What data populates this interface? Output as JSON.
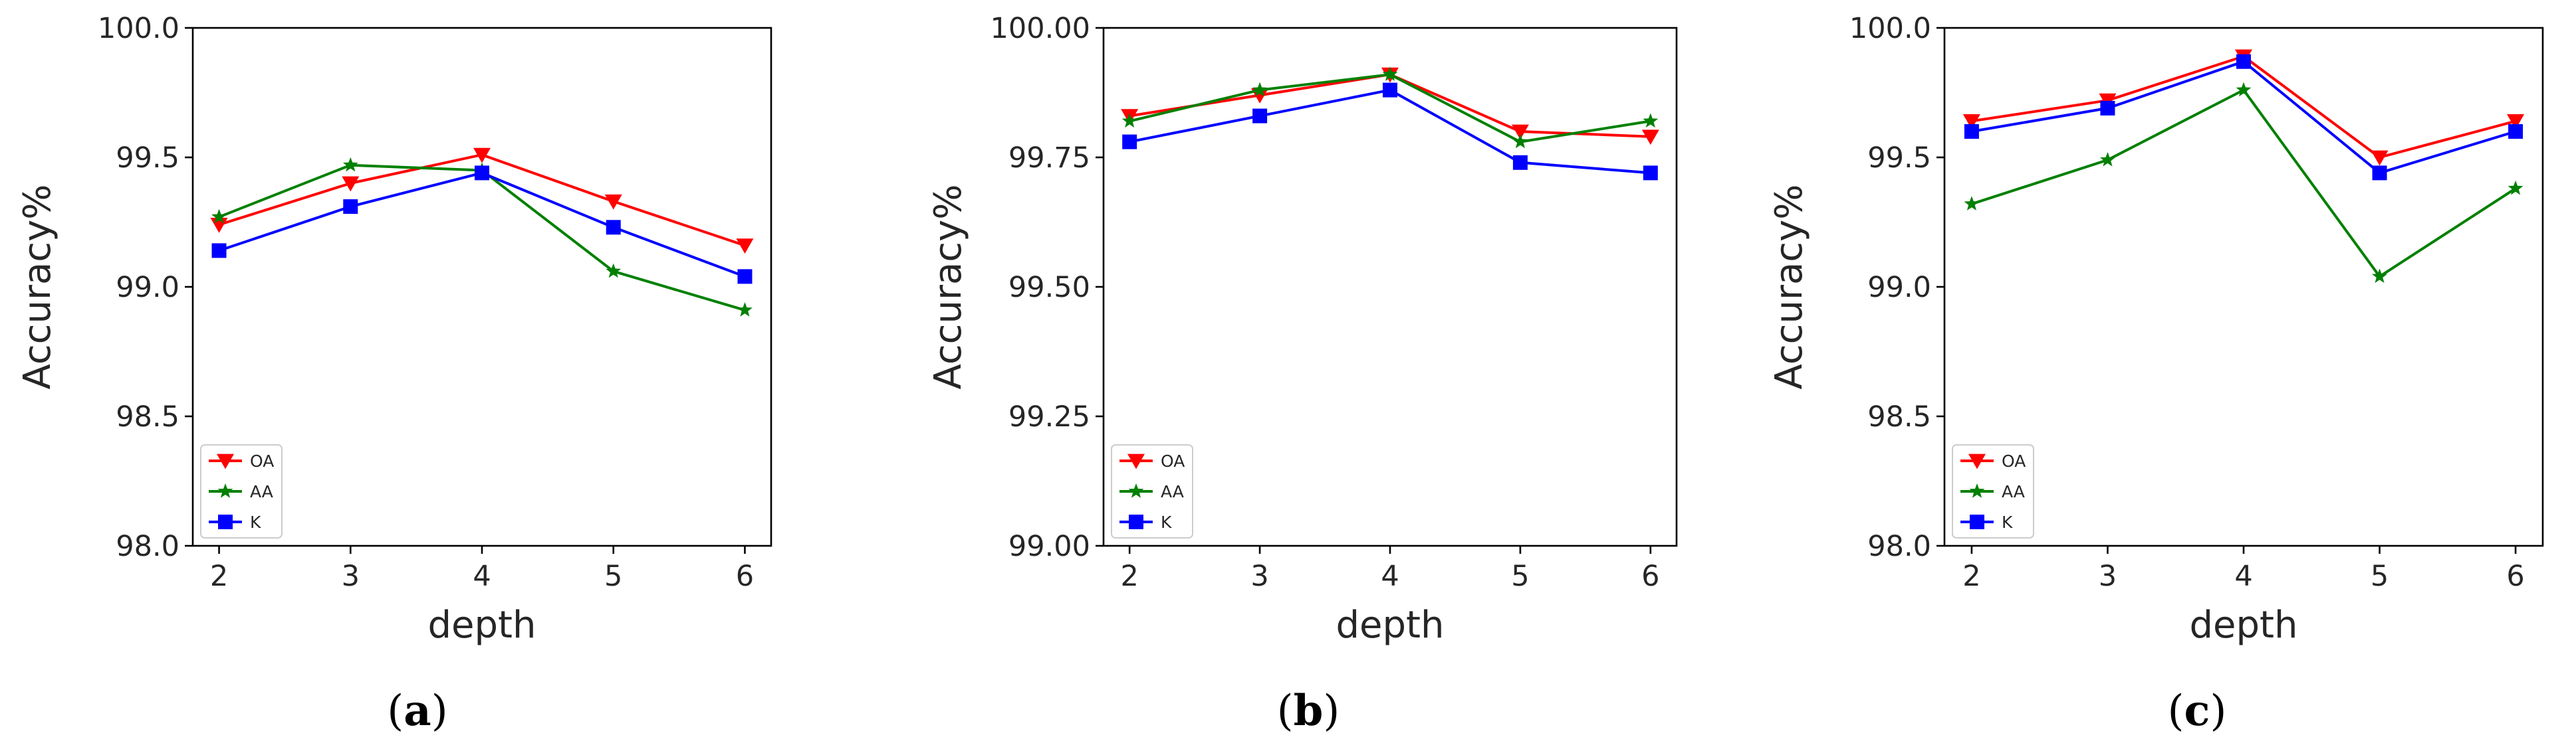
{
  "chart_data": [
    {
      "type": "line",
      "panel": "a",
      "caption": "(a)",
      "caption_letter": "a",
      "xlabel": "depth",
      "ylabel": "Accuracy%",
      "x": [
        2,
        3,
        4,
        5,
        6
      ],
      "xlim": [
        1.8,
        6.2
      ],
      "ylim": [
        98.0,
        100.0
      ],
      "xticks": [
        "2",
        "3",
        "4",
        "5",
        "6"
      ],
      "yticks": [
        98.0,
        98.5,
        99.0,
        99.5,
        100.0
      ],
      "ytick_labels": [
        "98.0",
        "98.5",
        "99.0",
        "99.5",
        "100.0"
      ],
      "legend_position": "lower-left",
      "series": [
        {
          "name": "OA",
          "values": [
            99.24,
            99.4,
            99.51,
            99.33,
            99.16
          ]
        },
        {
          "name": "AA",
          "values": [
            99.27,
            99.47,
            99.45,
            99.06,
            98.91
          ]
        },
        {
          "name": "K",
          "values": [
            99.14,
            99.31,
            99.44,
            99.23,
            99.04
          ]
        }
      ]
    },
    {
      "type": "line",
      "panel": "b",
      "caption": "(b)",
      "caption_letter": "b",
      "xlabel": "depth",
      "ylabel": "Accuracy%",
      "x": [
        2,
        3,
        4,
        5,
        6
      ],
      "xlim": [
        1.8,
        6.2
      ],
      "ylim": [
        99.0,
        100.0
      ],
      "xticks": [
        "2",
        "3",
        "4",
        "5",
        "6"
      ],
      "yticks": [
        99.0,
        99.25,
        99.5,
        99.75,
        100.0
      ],
      "ytick_labels": [
        "99.00",
        "99.25",
        "99.50",
        "99.75",
        "100.00"
      ],
      "legend_position": "lower-left",
      "series": [
        {
          "name": "OA",
          "values": [
            99.83,
            99.87,
            99.91,
            99.8,
            99.79
          ]
        },
        {
          "name": "AA",
          "values": [
            99.82,
            99.88,
            99.91,
            99.78,
            99.82
          ]
        },
        {
          "name": "K",
          "values": [
            99.78,
            99.83,
            99.88,
            99.74,
            99.72
          ]
        }
      ]
    },
    {
      "type": "line",
      "panel": "c",
      "caption": "(c)",
      "caption_letter": "c",
      "xlabel": "depth",
      "ylabel": "Accuracy%",
      "x": [
        2,
        3,
        4,
        5,
        6
      ],
      "xlim": [
        1.8,
        6.2
      ],
      "ylim": [
        98.0,
        100.0
      ],
      "xticks": [
        "2",
        "3",
        "4",
        "5",
        "6"
      ],
      "yticks": [
        98.0,
        98.5,
        99.0,
        99.5,
        100.0
      ],
      "ytick_labels": [
        "98.0",
        "98.5",
        "99.0",
        "99.5",
        "100.0"
      ],
      "legend_position": "lower-left",
      "series": [
        {
          "name": "OA",
          "values": [
            99.64,
            99.72,
            99.89,
            99.5,
            99.64
          ]
        },
        {
          "name": "AA",
          "values": [
            99.32,
            99.49,
            99.76,
            99.04,
            99.38
          ]
        },
        {
          "name": "K",
          "values": [
            99.6,
            99.69,
            99.87,
            99.44,
            99.6
          ]
        }
      ]
    }
  ],
  "style": {
    "series_colors": {
      "OA": "#ff0000",
      "AA": "#008000",
      "K": "#0000ff"
    },
    "series_markers": {
      "OA": "triangle-down",
      "AA": "star",
      "K": "square"
    }
  }
}
